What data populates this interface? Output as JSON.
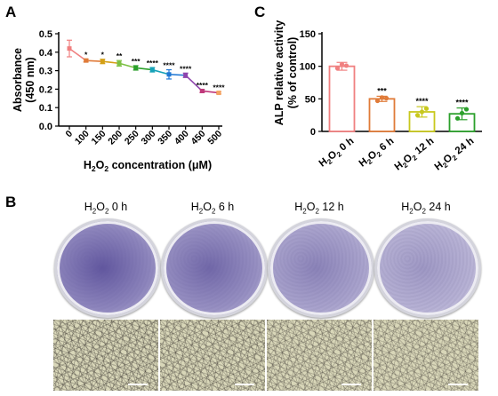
{
  "panels": {
    "a": "A",
    "b": "B",
    "c": "C"
  },
  "colors": {
    "chart_a_series": [
      "#f08080",
      "#e07b39",
      "#d4a017",
      "#7bc043",
      "#2ca02c",
      "#17a2b8",
      "#1f77d4",
      "#8e44ad",
      "#c0397b",
      "#f4a261",
      "#f5b041",
      "#e9a36a"
    ],
    "chart_c_bars": [
      "#f08080",
      "#e07b39",
      "#c8c81e",
      "#2ca02c"
    ],
    "dish_stain": "#5a4f9a",
    "micro_bg": "#d8d6b8"
  },
  "chart_data": [
    {
      "type": "line",
      "title": "",
      "ylabel_line1": "Absorbance",
      "ylabel_line2": "(450 nm)",
      "xlabel_parts": [
        "H",
        "2",
        "O",
        "2",
        " concentration (μM)"
      ],
      "x": [
        "0",
        "100",
        "150",
        "200",
        "250",
        "300",
        "350",
        "400",
        "450",
        "500"
      ],
      "values": [
        0.42,
        0.355,
        0.35,
        0.34,
        0.315,
        0.305,
        0.28,
        0.275,
        0.19,
        0.18
      ],
      "errors": [
        0.045,
        0.008,
        0.012,
        0.015,
        0.012,
        0.012,
        0.025,
        0.012,
        0.008,
        0.006
      ],
      "significance": [
        "",
        "*",
        "*",
        "**",
        "***",
        "****",
        "****",
        "****",
        "****",
        "****"
      ],
      "ylim": [
        0,
        0.5
      ],
      "yticks": [
        "0.0",
        "0.1",
        "0.2",
        "0.3",
        "0.4",
        "0.5"
      ]
    },
    {
      "type": "bar",
      "title": "",
      "ylabel_line1": "ALP relative activity",
      "ylabel_line2": "(% of control)",
      "categories": [
        {
          "a": "H",
          "b": "2",
          "c": "O",
          "d": "2",
          "e": " 0 h"
        },
        {
          "a": "H",
          "b": "2",
          "c": "O",
          "d": "2",
          "e": " 6 h"
        },
        {
          "a": "H",
          "b": "2",
          "c": "O",
          "d": "2",
          "e": " 12 h"
        },
        {
          "a": "H",
          "b": "2",
          "c": "O",
          "d": "2",
          "e": " 24 h"
        }
      ],
      "values": [
        100,
        50,
        30,
        27
      ],
      "errors": [
        6,
        4,
        8,
        9
      ],
      "points": [
        [
          97,
          103,
          101
        ],
        [
          47,
          52,
          51
        ],
        [
          25,
          30,
          35
        ],
        [
          20,
          28,
          34
        ]
      ],
      "significance": [
        "",
        "***",
        "****",
        "****"
      ],
      "ylim": [
        0,
        150
      ],
      "yticks": [
        "0",
        "50",
        "100",
        "150"
      ]
    }
  ],
  "panel_b": {
    "labels": [
      {
        "a": "H",
        "b": "2",
        "c": "O",
        "d": "2",
        "e": "  0 h"
      },
      {
        "a": "H",
        "b": "2",
        "c": "O",
        "d": "2",
        "e": "  6 h"
      },
      {
        "a": "H",
        "b": "2",
        "c": "O",
        "d": "2",
        "e": "  12 h"
      },
      {
        "a": "H",
        "b": "2",
        "c": "O",
        "d": "2",
        "e": "  24 h"
      }
    ],
    "stain_intensity": [
      1.0,
      0.85,
      0.6,
      0.4
    ]
  }
}
